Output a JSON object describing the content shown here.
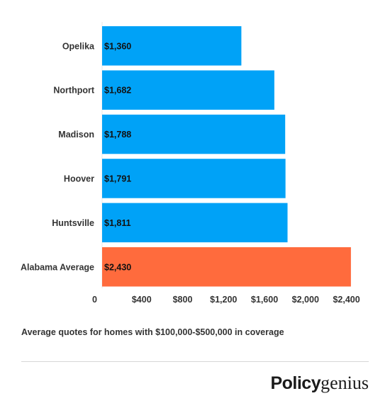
{
  "chart_data": {
    "type": "bar",
    "orientation": "horizontal",
    "categories": [
      "Opelika",
      "Northport",
      "Madison",
      "Hoover",
      "Huntsville",
      "Alabama Average"
    ],
    "values": [
      1360,
      1682,
      1788,
      1791,
      1811,
      2430
    ],
    "value_labels": [
      "$1,360",
      "$1,682",
      "$1,788",
      "$1,791",
      "$1,811",
      "$2,430"
    ],
    "bar_colors": [
      "#00a2f7",
      "#00a2f7",
      "#00a2f7",
      "#00a2f7",
      "#00a2f7",
      "#ff6b3d"
    ],
    "xlim": [
      0,
      2450
    ],
    "x_ticks": [
      {
        "value": 0,
        "label": "0"
      },
      {
        "value": 400,
        "label": "$400"
      },
      {
        "value": 800,
        "label": "$800"
      },
      {
        "value": 1200,
        "label": "$1,200"
      },
      {
        "value": 1600,
        "label": "$1,600"
      },
      {
        "value": 2000,
        "label": "$2,000"
      },
      {
        "value": 2400,
        "label": "$2,400"
      }
    ],
    "grid": false,
    "legend": "none"
  },
  "caption": "Average quotes for homes with $100,000-$500,000 in coverage",
  "brand": {
    "bold": "Policy",
    "light": "genius"
  }
}
